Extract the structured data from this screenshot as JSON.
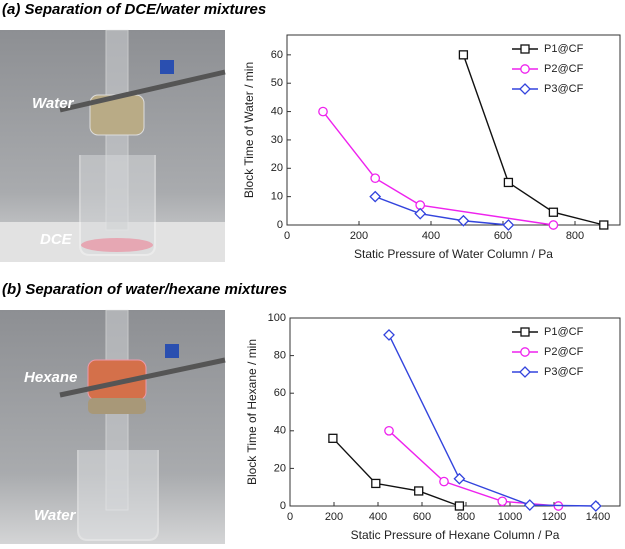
{
  "panels": [
    {
      "heading": "(a) Separation of DCE/water mixtures",
      "photo_labels": [
        "Water",
        "DCE"
      ]
    },
    {
      "heading": "(b) Separation of water/hexane mixtures",
      "photo_labels": [
        "Hexane",
        "Water"
      ]
    }
  ],
  "chart_data": [
    {
      "type": "line",
      "xlabel": "Static Pressure of Water Column / Pa",
      "ylabel": "Block Time of Water / min",
      "xlim": [
        0,
        925
      ],
      "xticks": [
        0,
        200,
        400,
        600,
        800
      ],
      "ylim": [
        0,
        67
      ],
      "yticks": [
        0,
        10,
        20,
        30,
        40,
        50,
        60
      ],
      "legend": "upper right",
      "series": [
        {
          "name": "P1@CF",
          "color": "#111111",
          "marker": "square",
          "x": [
            490,
            615,
            740,
            880
          ],
          "values": [
            60,
            15,
            4.5,
            0
          ]
        },
        {
          "name": "P2@CF",
          "color": "#ee22ee",
          "marker": "circle",
          "x": [
            100,
            245,
            370,
            740
          ],
          "values": [
            40,
            16.5,
            7,
            0
          ]
        },
        {
          "name": "P3@CF",
          "color": "#3344dd",
          "marker": "diamond",
          "x": [
            245,
            370,
            490,
            615
          ],
          "values": [
            10,
            4,
            1.5,
            0
          ]
        }
      ]
    },
    {
      "type": "line",
      "xlabel": "Static Pressure of Hexane Column / Pa",
      "ylabel": "Block Time of Hexane / min",
      "xlim": [
        0,
        1500
      ],
      "xticks": [
        0,
        200,
        400,
        600,
        800,
        1000,
        1200,
        1400
      ],
      "ylim": [
        0,
        100
      ],
      "yticks": [
        0,
        20,
        40,
        60,
        80,
        100
      ],
      "legend": "upper right",
      "series": [
        {
          "name": "P1@CF",
          "color": "#111111",
          "marker": "square",
          "x": [
            195,
            390,
            585,
            770
          ],
          "values": [
            36,
            12,
            8,
            0
          ]
        },
        {
          "name": "P2@CF",
          "color": "#ee22ee",
          "marker": "circle",
          "x": [
            450,
            700,
            965,
            1220
          ],
          "values": [
            40,
            13,
            2.5,
            0
          ]
        },
        {
          "name": "P3@CF",
          "color": "#3344dd",
          "marker": "diamond",
          "x": [
            450,
            770,
            1090,
            1390
          ],
          "values": [
            91,
            14.5,
            0.5,
            0
          ]
        }
      ]
    }
  ]
}
